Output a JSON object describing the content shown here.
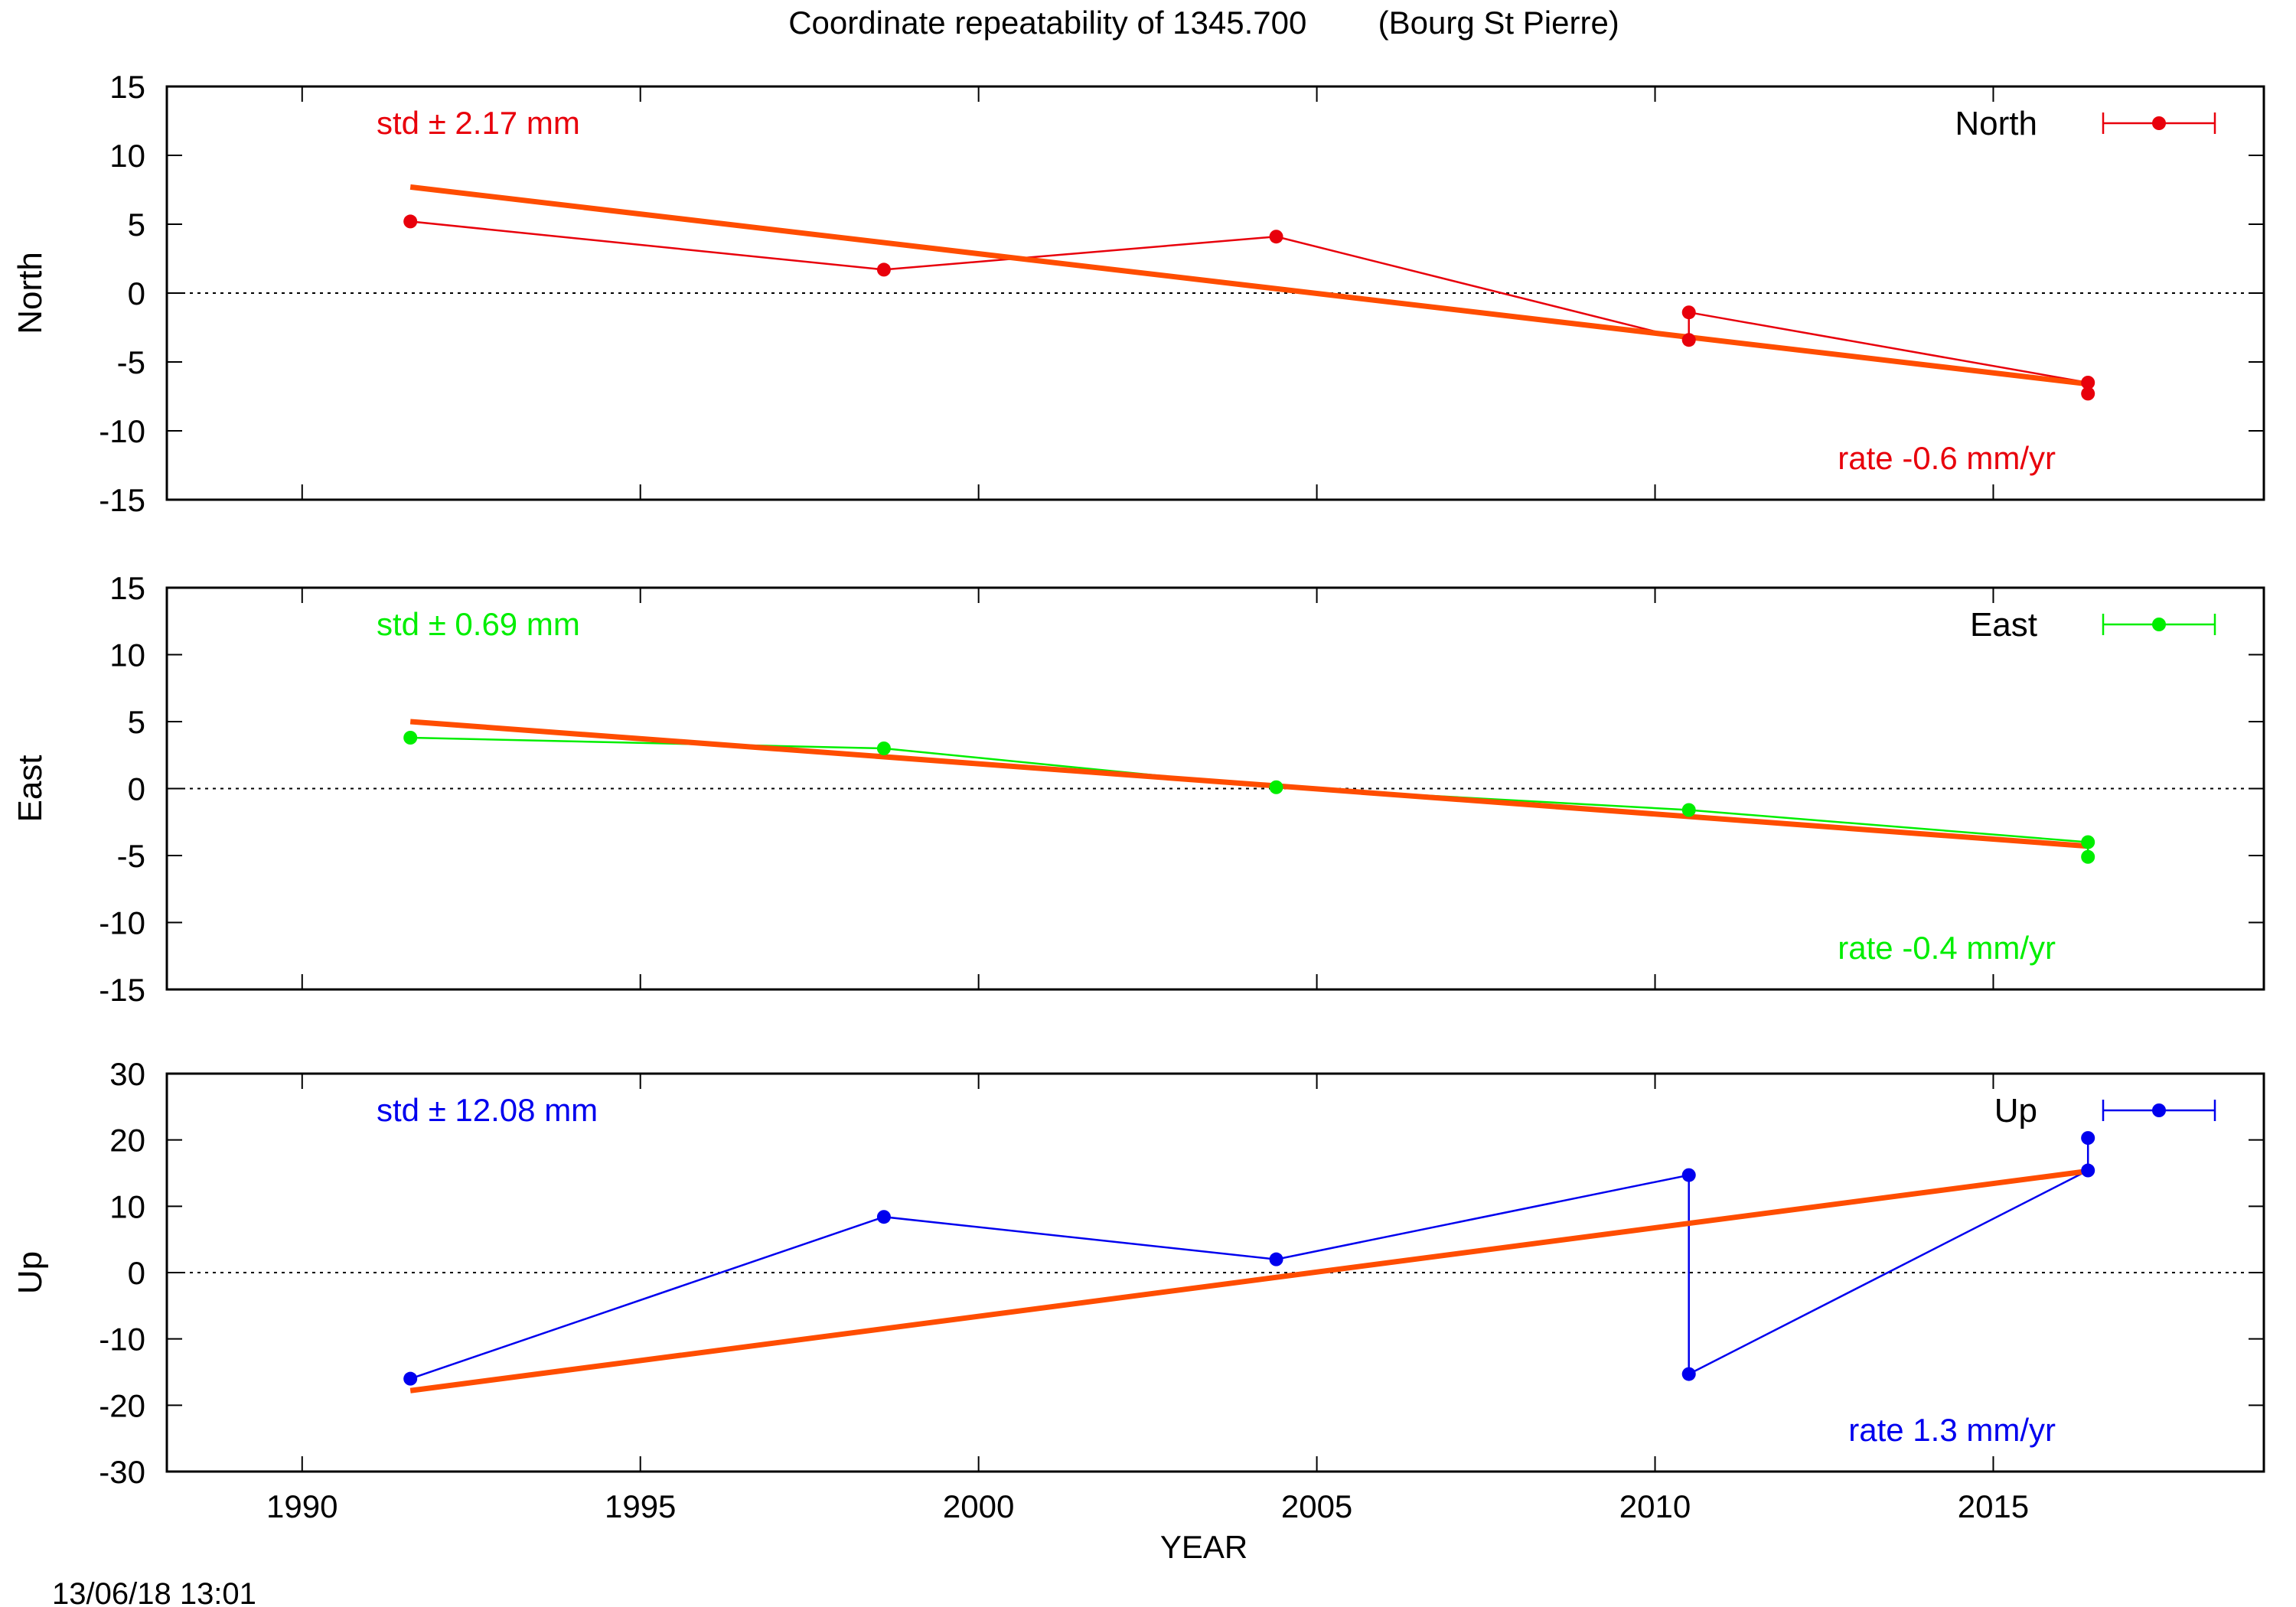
{
  "title": "Coordinate repeatability of 1345.700        (Bourg St Pierre)",
  "timestamp": "13/06/18 13:01",
  "x_axis_label": "YEAR",
  "chart_data": [
    {
      "type": "line",
      "id": "north",
      "ylabel": "North",
      "ylim": [
        -15,
        15
      ],
      "yticks": [
        15,
        10,
        5,
        0,
        -5,
        -10,
        -15
      ],
      "xlim": [
        1988,
        2019
      ],
      "xticks": [
        1990,
        1995,
        2000,
        2005,
        2010,
        2015
      ],
      "color": "#e8000b",
      "legend": "North",
      "std_label": "std ± 2.17 mm",
      "rate_label": "rate -0.6 mm/yr",
      "series": [
        {
          "x": [
            1991.6,
            1998.6,
            2004.4,
            2010.5,
            2010.5,
            2016.4,
            2016.4
          ],
          "y": [
            5.2,
            1.7,
            4.1,
            -3.4,
            -1.4,
            -6.5,
            -7.3
          ]
        }
      ],
      "trend": {
        "x": [
          1991.6,
          2016.4
        ],
        "y": [
          7.7,
          -6.6
        ]
      }
    },
    {
      "type": "line",
      "id": "east",
      "ylabel": "East",
      "ylim": [
        -15,
        15
      ],
      "yticks": [
        15,
        10,
        5,
        0,
        -5,
        -10,
        -15
      ],
      "xlim": [
        1988,
        2019
      ],
      "xticks": [
        1990,
        1995,
        2000,
        2005,
        2010,
        2015
      ],
      "color": "#00ee00",
      "legend": "East",
      "std_label": "std ± 0.69 mm",
      "rate_label": "rate -0.4 mm/yr",
      "series": [
        {
          "x": [
            1991.6,
            1998.6,
            2004.4,
            2010.5,
            2016.4,
            2016.4
          ],
          "y": [
            3.8,
            3.0,
            0.1,
            -1.6,
            -4.0,
            -5.1
          ]
        }
      ],
      "trend": {
        "x": [
          1991.6,
          2016.4
        ],
        "y": [
          5.0,
          -4.3
        ]
      }
    },
    {
      "type": "line",
      "id": "up",
      "ylabel": "Up",
      "ylim": [
        -30,
        30
      ],
      "yticks": [
        30,
        20,
        10,
        0,
        -10,
        -20,
        -30
      ],
      "xlim": [
        1988,
        2019
      ],
      "xticks": [
        1990,
        1995,
        2000,
        2005,
        2010,
        2015
      ],
      "color": "#0000ee",
      "legend": "Up",
      "std_label": "std ± 12.08 mm",
      "rate_label": "rate  1.3 mm/yr",
      "series": [
        {
          "x": [
            1991.6,
            1998.6,
            2004.4,
            2010.5,
            2010.5,
            2016.4,
            2016.4
          ],
          "y": [
            -16.0,
            8.4,
            2.0,
            14.7,
            -15.3,
            15.4,
            20.3
          ]
        }
      ],
      "trend": {
        "x": [
          1991.6,
          2016.4
        ],
        "y": [
          -17.8,
          15.3
        ]
      }
    }
  ],
  "trend_color": "#ff4d00"
}
